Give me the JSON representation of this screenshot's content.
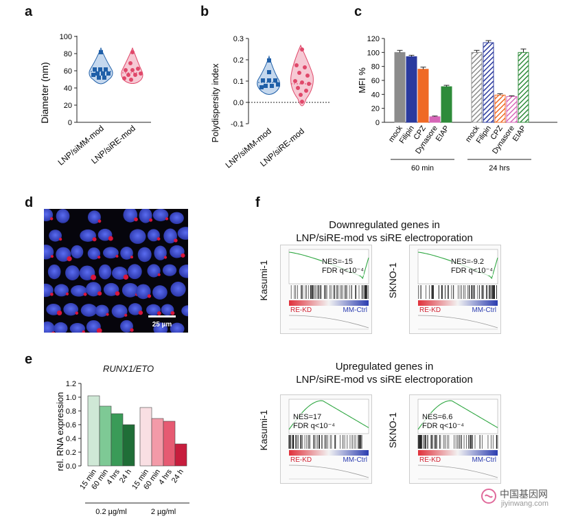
{
  "panels": {
    "a": "a",
    "b": "b",
    "c": "c",
    "d": "d",
    "e": "e",
    "f": "f"
  },
  "panel_a": {
    "ylabel": "Diameter (nm)",
    "yticks": [
      "0",
      "20",
      "40",
      "60",
      "80",
      "100"
    ],
    "groups": [
      "LNP/siMM-mod",
      "LNP/siRE-mod"
    ],
    "colors": [
      "#1f5fa8",
      "#e0486a"
    ]
  },
  "panel_b": {
    "ylabel": "Polydispersity index",
    "yticks": [
      "-0.1",
      "0.0",
      "0.1",
      "0.2",
      "0.3"
    ],
    "groups": [
      "LNP/siMM-mod",
      "LNP/siRE-mod"
    ]
  },
  "panel_d": {
    "scale_label": "25 µm"
  },
  "panel_e": {
    "title": "RUNX1/ETO",
    "ylabel": "rel. RNA expression",
    "group1": "0.2 µg/ml",
    "group2": "2 µg/ml"
  },
  "panel_f": {
    "title_down": "Downregulated genes in\nLNP/siRE-mod vs siRE electroporation",
    "title_up": "Upregulated genes in\nLNP/siRE-mod vs siRE electroporation",
    "plots": [
      {
        "cell": "Kasumi-1",
        "nes": "NES=-15",
        "fdr": "FDR q<10⁻⁴",
        "left": "RE-KD",
        "right": "MM-Ctrl"
      },
      {
        "cell": "SKNO-1",
        "nes": "NES=-9.2",
        "fdr": "FDR q<10⁻⁴",
        "left": "RE-KD",
        "right": "MM-Ctrl"
      },
      {
        "cell": "Kasumi-1",
        "nes": "NES=17",
        "fdr": "FDR q<10⁻⁴",
        "left": "RE-KD",
        "right": "MM-Ctrl"
      },
      {
        "cell": "SKNO-1",
        "nes": "NES=6.6",
        "fdr": "FDR q<10⁻⁴",
        "left": "RE-KD",
        "right": "MM-Ctrl"
      }
    ]
  },
  "watermark": {
    "cn": "中国基因网",
    "url": "jiyinwang.com"
  },
  "chart_data": [
    {
      "type": "bar",
      "title": "",
      "ylabel": "MFI %",
      "ylim": [
        0,
        120
      ],
      "categories": [
        "mock",
        "Filipin",
        "CPZ",
        "Dynasore",
        "EIAP"
      ],
      "groups": [
        "60 min",
        "24 hrs"
      ],
      "series": [
        {
          "name": "60 min",
          "values": [
            100,
            94,
            76,
            8,
            51
          ],
          "errors": [
            3,
            2,
            3,
            1,
            2
          ]
        },
        {
          "name": "24 hrs",
          "values": [
            100,
            114,
            39,
            37,
            100
          ],
          "errors": [
            3,
            3,
            2,
            1,
            5
          ]
        }
      ],
      "colors": [
        "#8c8c8c",
        "#2b3a9e",
        "#ef6a26",
        "#d766b8",
        "#2e8b3a"
      ]
    },
    {
      "type": "bar",
      "title": "RUNX1/ETO",
      "ylabel": "rel. RNA expression",
      "ylim": [
        0,
        1.2
      ],
      "yticks": [
        "0.0",
        "0.2",
        "0.4",
        "0.6",
        "0.8",
        "1.0",
        "1.2"
      ],
      "categories": [
        "15 min",
        "60 min",
        "4 hrs",
        "24 h"
      ],
      "series": [
        {
          "name": "0.2 µg/ml",
          "values": [
            1.02,
            0.87,
            0.76,
            0.6
          ]
        },
        {
          "name": "2 µg/ml",
          "values": [
            0.85,
            0.69,
            0.65,
            0.32
          ]
        }
      ]
    }
  ]
}
